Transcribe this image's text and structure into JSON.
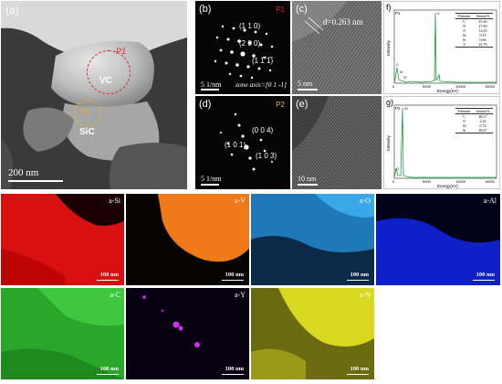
{
  "panel_a": {
    "label": "(a)",
    "p1": "P1",
    "vc": "VC",
    "p2": "P2",
    "sic": "SiC",
    "scale": "200 nm",
    "colors": {
      "p1": "#d62728",
      "p2": "#e8b418"
    }
  },
  "panel_b": {
    "label": "(b)",
    "p1": "P1",
    "idx1": "(1 1 0)",
    "idx2": "(2 0 0)",
    "idx3": "(1 1̅ 1̅)",
    "scale": "5 1/nm",
    "zone": "zone axis=[0 1 -1]"
  },
  "panel_c": {
    "label": "(c)",
    "d": "d=0.263 nm",
    "scale": "5 nm"
  },
  "panel_d": {
    "label": "(d)",
    "p2": "P2",
    "idx1": "(0 0 4)",
    "idx2": "(1 0 1)",
    "idx3": "(1 0 3)",
    "scale": "5 1/nm"
  },
  "panel_e": {
    "label": "(e)",
    "scale": "10 nm"
  },
  "panel_f": {
    "label": "f)",
    "tag": "P1",
    "ylabel": "Intensity",
    "xlabel": "Energy(eV)",
    "ticks": [
      "0",
      "5000",
      "10000",
      "15000"
    ],
    "peak_labels": [
      "C",
      "N",
      "Si",
      "V"
    ],
    "table": {
      "headers": [
        "Element",
        "Atomic%"
      ],
      "rows": [
        [
          "C",
          "25.46"
        ],
        [
          "N",
          "17.60"
        ],
        [
          "O",
          "14.23"
        ],
        [
          "Al",
          "0.15"
        ],
        [
          "Si",
          "0.66"
        ],
        [
          "V",
          "41.79"
        ]
      ]
    }
  },
  "panel_g": {
    "label": "g)",
    "tag": "P2",
    "ylabel": "Intensity",
    "xlabel": "Energy(eV)",
    "ticks": [
      "0",
      "5000",
      "10000",
      "15000"
    ],
    "peak_labels": [
      "Si",
      "O"
    ],
    "table": {
      "headers": [
        "Element",
        "Atomic%"
      ],
      "rows": [
        [
          "C",
          "48.37"
        ],
        [
          "O",
          "2.42"
        ],
        [
          "Al",
          "0.72"
        ],
        [
          "Si",
          "48.47"
        ]
      ]
    }
  },
  "maps": [
    {
      "title": "a-Si",
      "scale": "100 nm",
      "color": "#ff2020"
    },
    {
      "title": "a-V",
      "scale": "100 nm",
      "color": "#f07a18"
    },
    {
      "title": "a-O",
      "scale": "100 nm",
      "color": "#2a9ae0"
    },
    {
      "title": "a-Al",
      "scale": "100 nm",
      "color": "#1a2aff"
    },
    {
      "title": "a-C",
      "scale": "100 nm",
      "color": "#2fc22f"
    },
    {
      "title": "a-Y",
      "scale": "100 nm",
      "color": "#c020e0"
    },
    {
      "title": "a-N",
      "scale": "100 nm",
      "color": "#d8d820"
    }
  ]
}
